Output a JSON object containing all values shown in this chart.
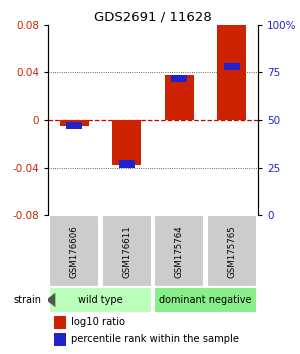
{
  "title": "GDS2691 / 11628",
  "samples": [
    "GSM176606",
    "GSM176611",
    "GSM175764",
    "GSM175765"
  ],
  "log10_ratio": [
    -0.005,
    -0.038,
    0.038,
    0.08
  ],
  "percentile_rank": [
    47,
    27,
    72,
    78
  ],
  "groups": [
    {
      "label": "wild type",
      "indices": [
        0,
        1
      ],
      "color": "#bbffbb"
    },
    {
      "label": "dominant negative",
      "indices": [
        2,
        3
      ],
      "color": "#88ee88"
    }
  ],
  "ylim": [
    -0.08,
    0.08
  ],
  "yticks_left": [
    -0.08,
    -0.04,
    0,
    0.04,
    0.08
  ],
  "yticks_right": [
    0,
    25,
    50,
    75,
    100
  ],
  "bar_color_red": "#cc2200",
  "bar_color_blue": "#2222cc",
  "zero_line_color": "#cc0000",
  "grid_color": "#333333",
  "strain_label": "strain",
  "legend_red": "log10 ratio",
  "legend_blue": "percentile rank within the sample",
  "bar_width": 0.55
}
